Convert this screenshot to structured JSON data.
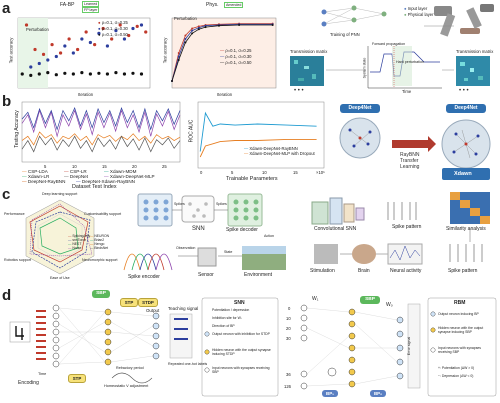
{
  "labels": {
    "a": "a",
    "b": "b",
    "c": "c",
    "d": "d"
  },
  "panel_a": {
    "chart1": {
      "top_label": "FA-BP",
      "top_tag1": "Learned",
      "top_tag2": "FP layer",
      "inner_label": "Perturbation",
      "ylabel": "Test accuracy",
      "xlabel": "Iteration",
      "legend": [
        "ρ=0.1, σ=0.25",
        "ρ=0.1, σ=0.30",
        "ρ=0.1, σ=0.50"
      ]
    },
    "chart2": {
      "top_label": "Phys.",
      "top_tag": "Amended",
      "inner_label": "Perturbation",
      "ylabel": "Test accuracy",
      "xlabel": "Iteration",
      "legend": [
        "ρ=0.1, σ=0.25",
        "ρ=0.1, σ=0.30",
        "ρ=0.1, σ=0.50"
      ]
    },
    "diagram": {
      "legend1": "Input layer",
      "legend2": "Physical layer",
      "training_label": "Training of PNN",
      "tm_left": "Transmission matrix",
      "tm_right": "Transmission matrix",
      "fwd_prop": "Forward propagation",
      "hard_pert": "Hard perturbation",
      "time_label": "Time",
      "sys_state": "System state"
    }
  },
  "panel_b": {
    "chart1": {
      "ylabel": "Testing Accuracy",
      "xlabel": "Dataset Test Index",
      "xticks": [
        "5",
        "10",
        "15",
        "20",
        "25"
      ],
      "legend": [
        "CSP-LDA",
        "CSP-LR",
        "Xdawn-MDM",
        "Xdawn-LR",
        "DeepNet",
        "Xdawn-DeepNet-MLP",
        "DeepNet-RayBNN",
        "DeepNet-Xdawn-RayBNN"
      ]
    },
    "chart2": {
      "ylabel": "ROC AUC",
      "xlabel": "Trainable Parameters",
      "xticks": [
        "0",
        "5",
        "10",
        "15"
      ],
      "exp": "×10⁵",
      "legend": [
        "Xdawn-DeepNet-RayBNN",
        "Xdawn-DeepNet-MLP with Dropout"
      ]
    },
    "diagram": {
      "deep_left": "Deep4Net",
      "deep_right": "Deep4Net",
      "rb1": "RayBNN",
      "rb2": "Transfer",
      "rb3": "Learning",
      "xdawn": "Xdawn"
    }
  },
  "panel_c": {
    "radar_labels": [
      "Deep learning support",
      "Performance",
      "Customisability support",
      "Robotics support",
      "Neuromorphic support",
      "Ease of Use"
    ],
    "radar_legend": [
      "SpikingJelly",
      "snnTorch",
      "NEST",
      "Norse",
      "NEURON",
      "Brian2",
      "Nengo",
      "BindsNet"
    ],
    "spikes": "Spikes",
    "spikes2": "Spikes",
    "snn": "SNN",
    "spike_decoder": "Spike decoder",
    "spike_encoder": "Spike encoder",
    "observation": "Observation",
    "action": "Action",
    "state": "State",
    "sensor": "Sensor",
    "environment": "Environment",
    "conv_snn": "Convolutional SNN",
    "spike_pattern": "Spike pattern",
    "similarity": "Similarity analysis",
    "stimulation": "Stimulation",
    "brain": "Brain",
    "neural_activity": "Neural activity",
    "spike_pattern2": "Spike pattern"
  },
  "panel_d": {
    "encoding": "Encoding",
    "time": "Time",
    "stp1": "STP",
    "stp2": "STP",
    "stdp": "STDP",
    "sbp": "SBP",
    "output": "Output",
    "teaching": "Teaching signal",
    "refractory": "Refractory period",
    "homeostatic": "Homeostatic V adjustment",
    "repeated": "Repeated one-hot labels",
    "snn_title": "SNN",
    "snn_legend": [
      "Potentiation / depression",
      "Inhibition site for Wᵢ",
      "Direction of BP",
      "Output neuron with inhibition for STDP",
      "Hidden neuron with the output synapse inducing STDP",
      "Input neurons with synapses receiving SBP"
    ],
    "numbers": [
      "0",
      "10",
      "20",
      "30",
      "36",
      "126"
    ],
    "w1": "W₁",
    "w2": "Wₒ",
    "sbp2": "SBP",
    "bp1": "BP₁",
    "bp2": "BP₂",
    "error_signal": "Error signal",
    "rbm_title": "RBM",
    "rbm_legend": [
      "Output neuron inducing BP",
      "Hidden neuron with the output synapse inducing SBP",
      "Input neurons with synapses receiving SBP",
      "+: Potentiation (ΔW > 0)",
      "−: Depression (ΔW < 0)"
    ]
  },
  "chart_data": [
    {
      "type": "scatter",
      "title": "",
      "xlabel": "Iteration",
      "ylabel": "Test accuracy",
      "series": [
        {
          "name": "ρ=0.1, σ=0.25",
          "color": "#c0392b",
          "points": [
            [
              2,
              0.9
            ],
            [
              4,
              0.55
            ],
            [
              6,
              0.48
            ],
            [
              8,
              0.62
            ],
            [
              10,
              0.5
            ],
            [
              12,
              0.7
            ],
            [
              14,
              0.55
            ],
            [
              16,
              0.8
            ],
            [
              18,
              0.62
            ],
            [
              20,
              0.85
            ],
            [
              22,
              0.7
            ],
            [
              24,
              0.9
            ],
            [
              26,
              0.75
            ],
            [
              28,
              0.88
            ],
            [
              30,
              0.8
            ]
          ]
        },
        {
          "name": "ρ=0.1, σ=0.30",
          "color": "#2c3e9e",
          "points": [
            [
              3,
              0.3
            ],
            [
              5,
              0.35
            ],
            [
              7,
              0.4
            ],
            [
              9,
              0.45
            ],
            [
              11,
              0.6
            ],
            [
              13,
              0.5
            ],
            [
              15,
              0.7
            ],
            [
              17,
              0.65
            ],
            [
              19,
              0.78
            ],
            [
              21,
              0.6
            ],
            [
              23,
              0.82
            ],
            [
              25,
              0.7
            ],
            [
              27,
              0.85
            ],
            [
              29,
              0.9
            ]
          ]
        },
        {
          "name": "ρ=0.1, σ=0.50",
          "color": "#111111",
          "points": [
            [
              1,
              0.2
            ],
            [
              3,
              0.18
            ],
            [
              5,
              0.2
            ],
            [
              7,
              0.22
            ],
            [
              9,
              0.19
            ],
            [
              11,
              0.21
            ],
            [
              13,
              0.2
            ],
            [
              15,
              0.22
            ],
            [
              17,
              0.2
            ],
            [
              19,
              0.21
            ],
            [
              21,
              0.2
            ],
            [
              23,
              0.22
            ],
            [
              25,
              0.2
            ],
            [
              27,
              0.21
            ],
            [
              29,
              0.2
            ]
          ]
        }
      ]
    },
    {
      "type": "line",
      "title": "",
      "xlabel": "Iteration",
      "ylabel": "Test accuracy",
      "series": [
        {
          "name": "ρ=0.1, σ=0.25",
          "color": "#c0392b",
          "points": [
            [
              0,
              0.1
            ],
            [
              2,
              0.5
            ],
            [
              4,
              0.75
            ],
            [
              6,
              0.85
            ],
            [
              8,
              0.88
            ],
            [
              10,
              0.9
            ],
            [
              14,
              0.91
            ],
            [
              20,
              0.92
            ],
            [
              30,
              0.92
            ]
          ]
        },
        {
          "name": "ρ=0.1, σ=0.30",
          "color": "#2c3e9e",
          "points": [
            [
              0,
              0.1
            ],
            [
              2,
              0.45
            ],
            [
              4,
              0.7
            ],
            [
              6,
              0.82
            ],
            [
              8,
              0.86
            ],
            [
              10,
              0.89
            ],
            [
              14,
              0.9
            ],
            [
              20,
              0.91
            ],
            [
              30,
              0.91
            ]
          ]
        },
        {
          "name": "ρ=0.1, σ=0.50",
          "color": "#111111",
          "points": [
            [
              0,
              0.1
            ],
            [
              2,
              0.4
            ],
            [
              4,
              0.65
            ],
            [
              6,
              0.78
            ],
            [
              8,
              0.84
            ],
            [
              10,
              0.87
            ],
            [
              14,
              0.89
            ],
            [
              20,
              0.9
            ],
            [
              30,
              0.9
            ]
          ]
        }
      ]
    },
    {
      "type": "line",
      "title": "",
      "xlabel": "Dataset Test Index",
      "ylabel": "Testing Accuracy",
      "series": [
        {
          "name": "CSP-LDA",
          "color": "#e67e22",
          "values": [
            0.55,
            0.6,
            0.5,
            0.65,
            0.58,
            0.62,
            0.52,
            0.6,
            0.57,
            0.63,
            0.55,
            0.6,
            0.5,
            0.62,
            0.58,
            0.61,
            0.54,
            0.6,
            0.56,
            0.63,
            0.55,
            0.6,
            0.52,
            0.62,
            0.57,
            0.6,
            0.55,
            0.59
          ]
        },
        {
          "name": "Xdawn-DeepNet-MLP",
          "color": "#8e44ad",
          "values": [
            0.75,
            0.85,
            0.65,
            0.9,
            0.7,
            0.88,
            0.6,
            0.85,
            0.72,
            0.9,
            0.68,
            0.86,
            0.62,
            0.88,
            0.7,
            0.87,
            0.66,
            0.9,
            0.7,
            0.85,
            0.65,
            0.88,
            0.6,
            0.86,
            0.72,
            0.89,
            0.68,
            0.85
          ]
        },
        {
          "name": "DeepNet-Xdawn-RayBNN",
          "color": "#2c3e9e",
          "values": [
            0.8,
            0.88,
            0.7,
            0.92,
            0.75,
            0.9,
            0.68,
            0.9,
            0.78,
            0.93,
            0.72,
            0.9,
            0.7,
            0.92,
            0.76,
            0.9,
            0.72,
            0.93,
            0.76,
            0.9,
            0.7,
            0.92,
            0.68,
            0.9,
            0.78,
            0.92,
            0.74,
            0.9
          ]
        },
        {
          "name": "DeepNet",
          "color": "#555555",
          "values": [
            0.45,
            0.55,
            0.42,
            0.6,
            0.5,
            0.58,
            0.44,
            0.56,
            0.48,
            0.6,
            0.46,
            0.55,
            0.42,
            0.58,
            0.48,
            0.56,
            0.45,
            0.6,
            0.48,
            0.57,
            0.44,
            0.58,
            0.42,
            0.56,
            0.5,
            0.58,
            0.46,
            0.55
          ]
        }
      ]
    },
    {
      "type": "line",
      "title": "",
      "xlabel": "Trainable Parameters",
      "ylabel": "ROC AUC",
      "series": [
        {
          "name": "Xdawn-DeepNet-RayBNN",
          "color": "#1f9bd1",
          "points": [
            [
              0.3,
              0.55
            ],
            [
              1,
              0.9
            ],
            [
              2,
              0.78
            ],
            [
              3,
              0.8
            ],
            [
              5,
              0.79
            ],
            [
              8,
              0.8
            ],
            [
              12,
              0.79
            ],
            [
              16,
              0.78
            ]
          ]
        },
        {
          "name": "Xdawn-DeepNet-MLP with Dropout",
          "color": "#e67e22",
          "points": [
            [
              0.3,
              0.5
            ],
            [
              1,
              0.6
            ],
            [
              2,
              0.62
            ],
            [
              3,
              0.64
            ],
            [
              5,
              0.65
            ],
            [
              8,
              0.65
            ],
            [
              12,
              0.66
            ],
            [
              16,
              0.66
            ]
          ]
        }
      ]
    }
  ]
}
